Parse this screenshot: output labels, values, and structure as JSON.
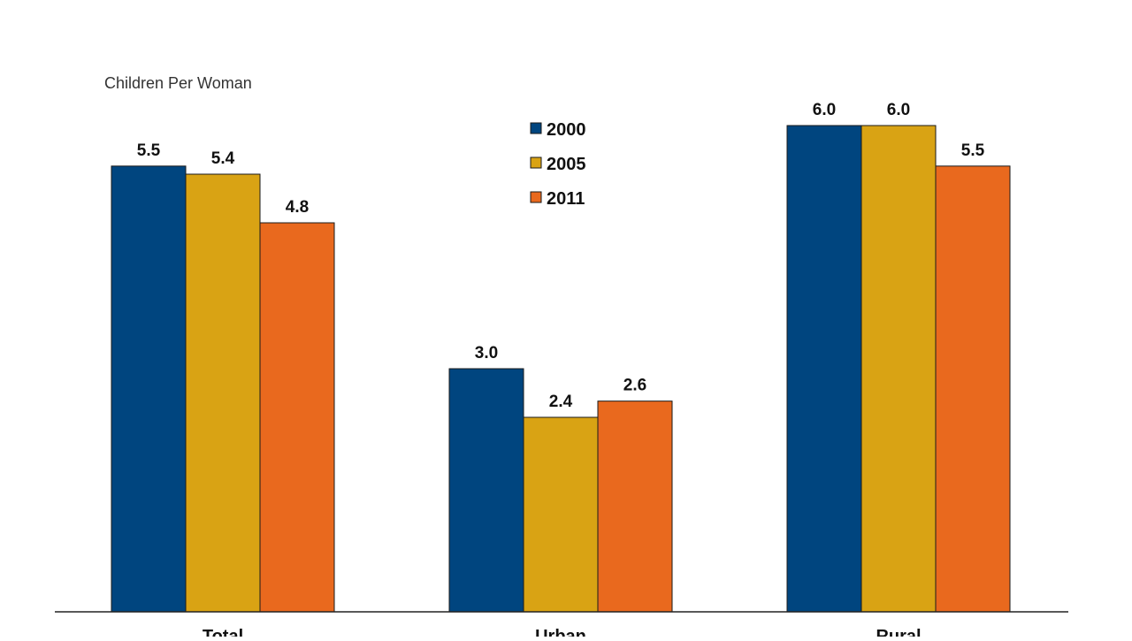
{
  "chart_data": {
    "type": "bar",
    "title": "",
    "ylabel": "Children Per Woman",
    "xlabel": "",
    "categories": [
      "Total",
      "Urban",
      "Rural"
    ],
    "series": [
      {
        "name": "2000",
        "color": "#00457f",
        "values": [
          5.5,
          3.0,
          6.0
        ]
      },
      {
        "name": "2005",
        "color": "#d9a314",
        "values": [
          5.4,
          2.4,
          6.0
        ]
      },
      {
        "name": "2011",
        "color": "#e9691e",
        "values": [
          4.8,
          2.6,
          5.5
        ]
      }
    ],
    "ylim": [
      0,
      7.0
    ],
    "grid": false,
    "legend_position": "top-center",
    "data_labels": true
  }
}
